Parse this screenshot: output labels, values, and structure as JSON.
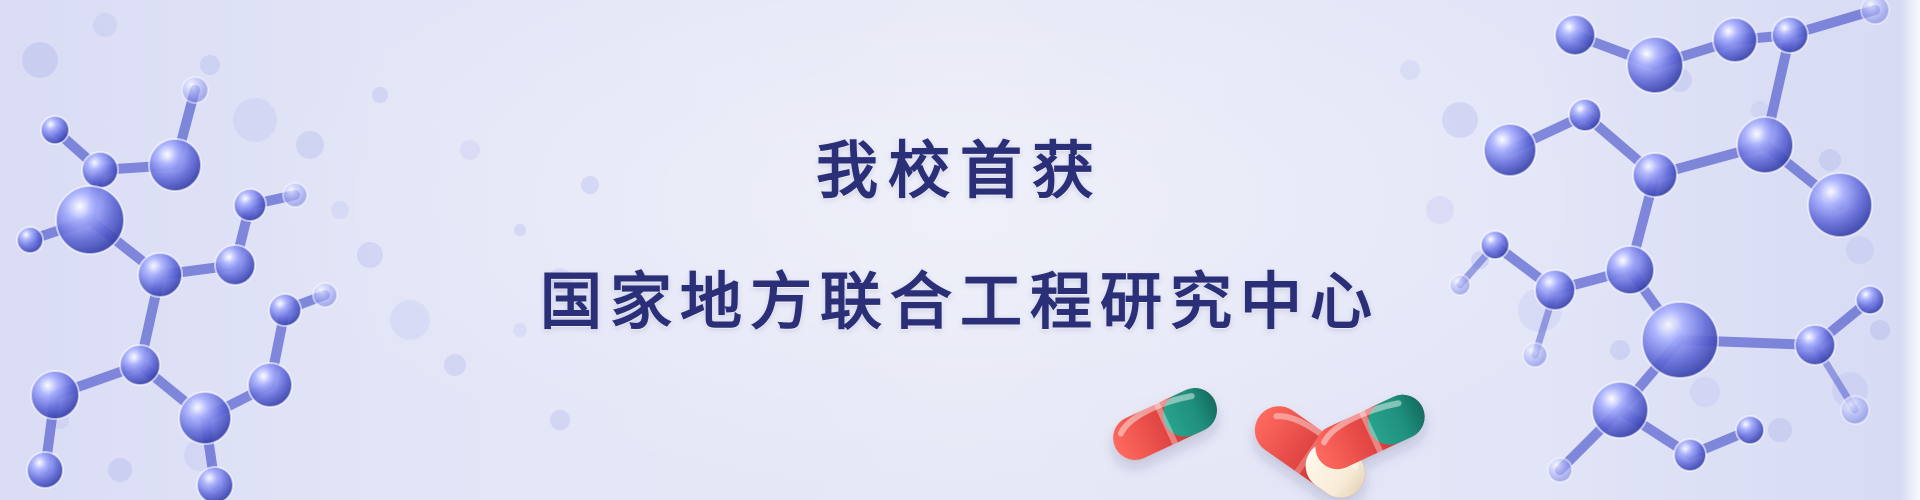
{
  "banner": {
    "title_line_1": "我校首获",
    "title_line_2": "国家地方联合工程研究中心"
  },
  "colors": {
    "background": "#e6e8f6",
    "title": "#2b2f77",
    "molecule": "#4e59cd",
    "capsule_red": "#d83b3b",
    "capsule_green": "#1f8f7d",
    "capsule_cream": "#f7ecd7"
  },
  "decor": {
    "left_molecule": "molecule-illustration",
    "right_molecule": "molecule-illustration",
    "capsules": "capsule-illustration"
  }
}
